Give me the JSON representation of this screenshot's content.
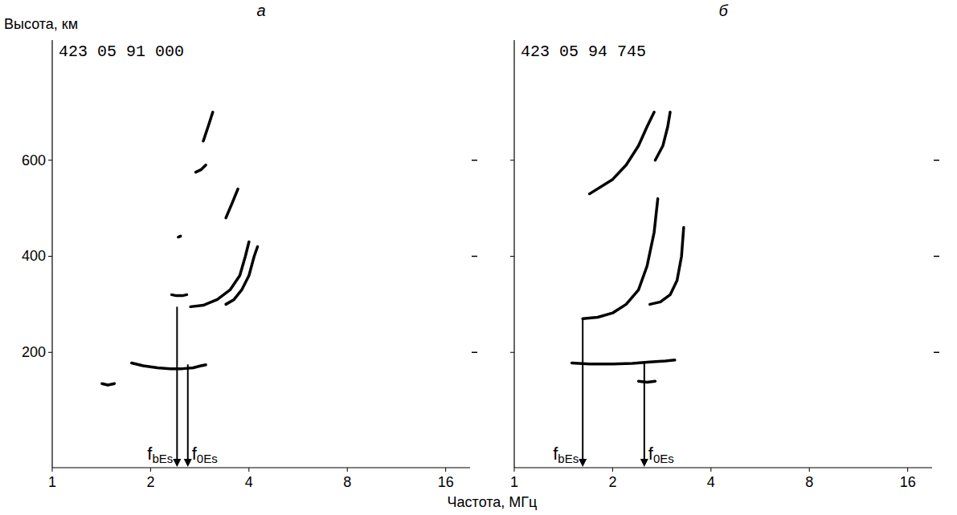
{
  "figure": {
    "ylabel": "Высота, км",
    "xlabel": "Частота, МГц"
  },
  "chart_data": [
    {
      "type": "line",
      "title": "а",
      "header": "423 05 91 000",
      "log": "x",
      "xlim": [
        1,
        19
      ],
      "xticks": [
        1,
        2,
        4,
        8,
        16
      ],
      "ylim": [
        -40,
        850
      ],
      "yticks": [
        200,
        400,
        600
      ],
      "tick_labels": true,
      "color": "#000000",
      "series": [
        {
          "x": [
            1.42,
            1.48,
            1.55
          ],
          "values": [
            135,
            132,
            135
          ]
        },
        {
          "x": [
            1.75,
            1.9,
            2.1,
            2.3,
            2.5,
            2.7,
            2.85,
            2.95
          ],
          "values": [
            178,
            172,
            168,
            166,
            166,
            168,
            172,
            174
          ]
        },
        {
          "x": [
            2.32,
            2.4,
            2.5,
            2.58
          ],
          "values": [
            320,
            318,
            318,
            320
          ]
        },
        {
          "x": [
            2.65,
            2.9,
            3.2,
            3.5,
            3.75,
            3.9,
            4.0
          ],
          "values": [
            295,
            298,
            310,
            330,
            360,
            400,
            430
          ]
        },
        {
          "x": [
            3.4,
            3.6,
            3.8,
            4.0,
            4.15,
            4.25
          ],
          "values": [
            300,
            310,
            330,
            360,
            400,
            420
          ]
        },
        {
          "x": [
            2.75,
            2.85,
            2.95
          ],
          "values": [
            575,
            580,
            590
          ]
        },
        {
          "x": [
            2.9,
            3.0,
            3.1
          ],
          "values": [
            640,
            670,
            700
          ]
        },
        {
          "x": [
            3.4,
            3.55,
            3.7
          ],
          "values": [
            480,
            510,
            540
          ]
        },
        {
          "x": [
            2.43,
            2.47
          ],
          "values": [
            440,
            442
          ]
        }
      ],
      "annotations": [
        {
          "text": "f",
          "subscript": "bEs",
          "x": 2.41,
          "y": 295
        },
        {
          "text": "f",
          "subscript": "0Es",
          "x": 2.6,
          "y": 175
        }
      ]
    },
    {
      "type": "line",
      "title": "б",
      "header": "423 05 94 745",
      "log": "x",
      "xlim": [
        1,
        19
      ],
      "xticks": [
        1,
        2,
        4,
        8,
        16
      ],
      "ylim": [
        -40,
        850
      ],
      "yticks": [
        200,
        400,
        600
      ],
      "tick_labels": "x",
      "color": "#000000",
      "series": [
        {
          "x": [
            1.5,
            1.7,
            2.0,
            2.3,
            2.6,
            2.9,
            3.1
          ],
          "values": [
            178,
            176,
            176,
            177,
            180,
            182,
            184
          ]
        },
        {
          "x": [
            1.62,
            1.8,
            2.0,
            2.2,
            2.4,
            2.55,
            2.68,
            2.75
          ],
          "values": [
            270,
            273,
            282,
            300,
            330,
            380,
            450,
            520
          ]
        },
        {
          "x": [
            2.6,
            2.8,
            3.0,
            3.15,
            3.25,
            3.3
          ],
          "values": [
            300,
            305,
            320,
            350,
            400,
            460
          ]
        },
        {
          "x": [
            1.7,
            2.0,
            2.2,
            2.4,
            2.55,
            2.68
          ],
          "values": [
            530,
            560,
            590,
            630,
            670,
            700
          ]
        },
        {
          "x": [
            2.7,
            2.85,
            2.95,
            3.0
          ],
          "values": [
            600,
            630,
            670,
            700
          ]
        },
        {
          "x": [
            2.4,
            2.55,
            2.7
          ],
          "values": [
            140,
            138,
            140
          ]
        }
      ],
      "annotations": [
        {
          "text": "f",
          "subscript": "bEs",
          "x": 1.62,
          "y": 270
        },
        {
          "text": "f",
          "subscript": "0Es",
          "x": 2.5,
          "y": 178
        }
      ]
    }
  ]
}
